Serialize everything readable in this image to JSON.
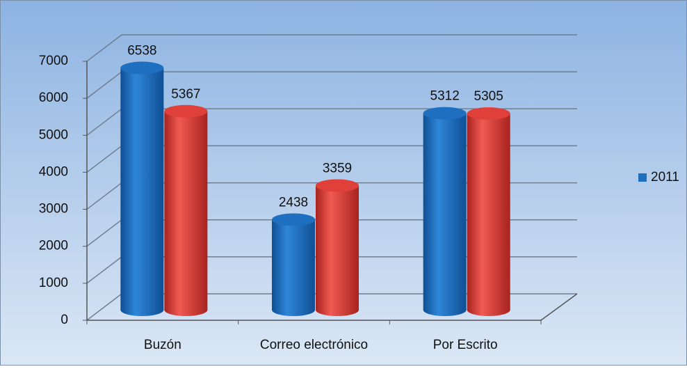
{
  "chart_data": {
    "type": "bar3d",
    "categories": [
      "Buzón",
      "Correo electrónico",
      "Por Escrito"
    ],
    "series": [
      {
        "name": "2011",
        "color": "#1f6fc0",
        "values": [
          6538,
          2438,
          5312
        ]
      },
      {
        "color": "#e0403a",
        "values": [
          5367,
          3359,
          5305
        ]
      }
    ],
    "ylim": [
      0,
      7000
    ],
    "yticks": [
      0,
      1000,
      2000,
      3000,
      4000,
      5000,
      6000,
      7000
    ],
    "grid": true,
    "legend": "right"
  }
}
